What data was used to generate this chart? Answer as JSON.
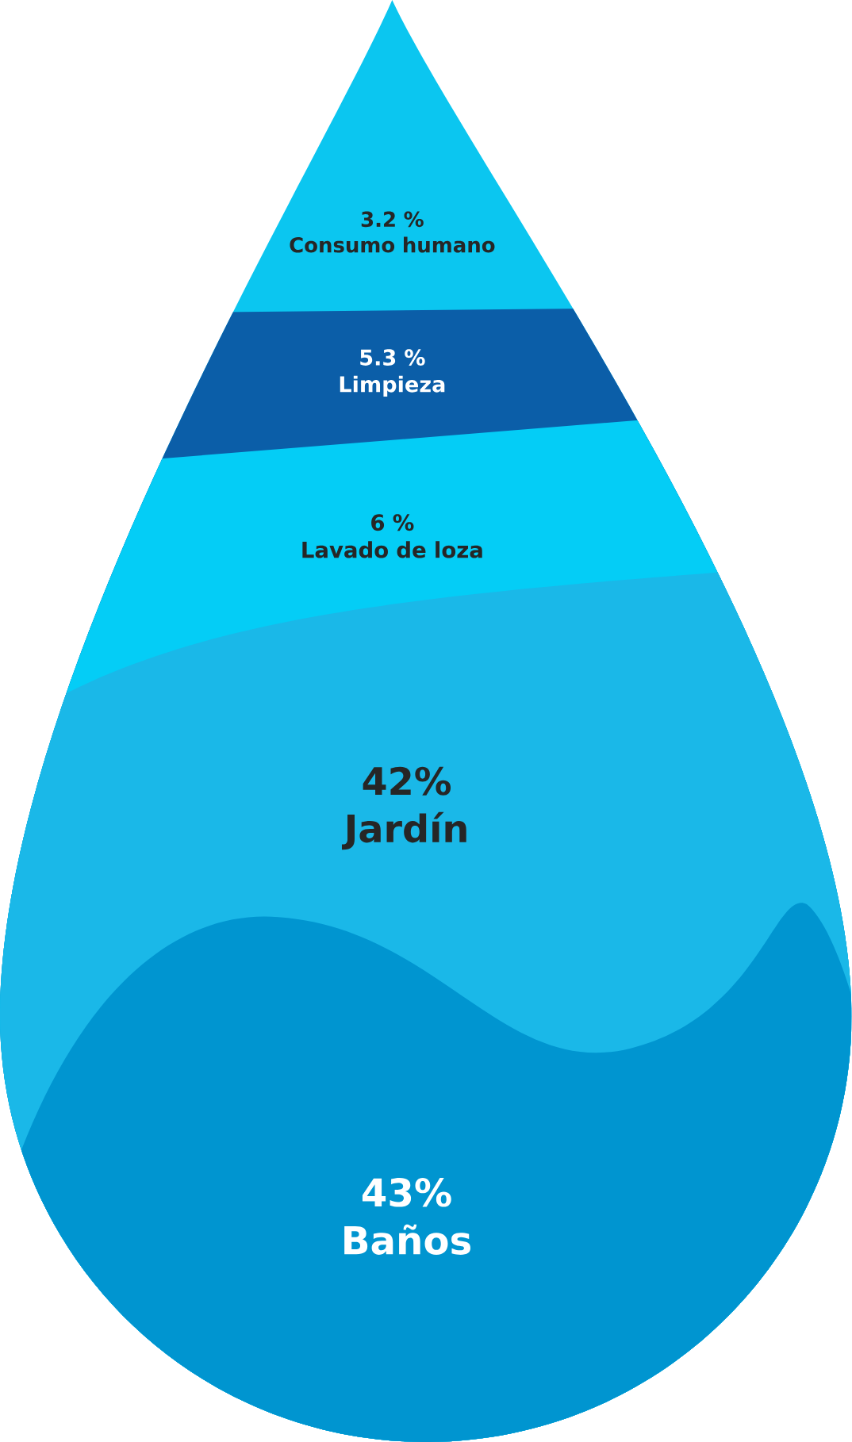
{
  "chart_data": {
    "type": "other",
    "categories": [
      "Consumo humano",
      "Limpieza",
      "Lavado de loza",
      "Jardín",
      "Baños"
    ],
    "values": [
      3.2,
      5.3,
      6,
      42,
      43
    ],
    "value_labels": [
      "3.2 %",
      "5.3 %",
      "6 %",
      "42%",
      "43%"
    ],
    "colors": [
      "#0bc6f0",
      "#0b5ea8",
      "#04cdf6",
      "#1ab8e8",
      "#0095d0"
    ]
  }
}
